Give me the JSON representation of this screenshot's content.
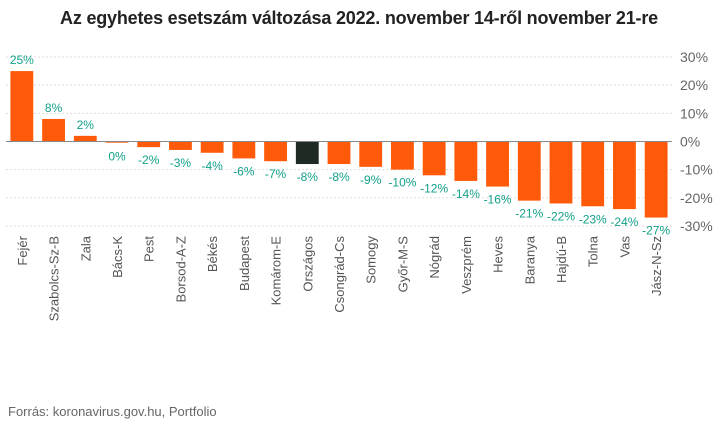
{
  "chart_data": {
    "type": "bar",
    "title": "Az egyhetes esetszám változása 2022. november 14-ről november 21-re",
    "source": "Forrás: koronavirus.gov.hu, Portfolio",
    "categories": [
      "Fejér",
      "Szabolcs-Sz-B",
      "Zala",
      "Bács-K",
      "Pest",
      "Borsod-A-Z",
      "Békés",
      "Budapest",
      "Komárom-E",
      "Országos",
      "Csongrád-Cs",
      "Somogy",
      "Győr-M-S",
      "Nógrád",
      "Veszprém",
      "Heves",
      "Baranya",
      "Hajdú-B",
      "Tolna",
      "Vas",
      "Jász-N-Sz"
    ],
    "values": [
      25,
      8,
      2,
      0,
      -2,
      -3,
      -4,
      -6,
      -7,
      -8,
      -8,
      -9,
      -10,
      -12,
      -14,
      -16,
      -21,
      -22,
      -23,
      -24,
      -27
    ],
    "data_labels": [
      "25%",
      "8%",
      "2%",
      "0%",
      "-2%",
      "-3%",
      "-4%",
      "-6%",
      "-7%",
      "-8%",
      "-8%",
      "-9%",
      "-10%",
      "-12%",
      "-14%",
      "-16%",
      "-21%",
      "-22%",
      "-23%",
      "-24%",
      "-27%"
    ],
    "highlight_category": "Országos",
    "ylim": [
      -30,
      30
    ],
    "yticks": [
      30,
      20,
      10,
      0,
      -10,
      -20,
      -30
    ],
    "ytick_labels": [
      "30%",
      "20%",
      "10%",
      "0%",
      "-10%",
      "-20%",
      "-30%"
    ],
    "y_axis_position": "right",
    "grid": true,
    "colors": {
      "bar": "#ff5a0a",
      "highlight": "#1f2a24",
      "positive_label": "#13a089",
      "negative_label": "#13a089",
      "grid": "#dddddd",
      "zero_line": "#888888",
      "tick_label": "#666666",
      "category_label": "#555555"
    }
  }
}
